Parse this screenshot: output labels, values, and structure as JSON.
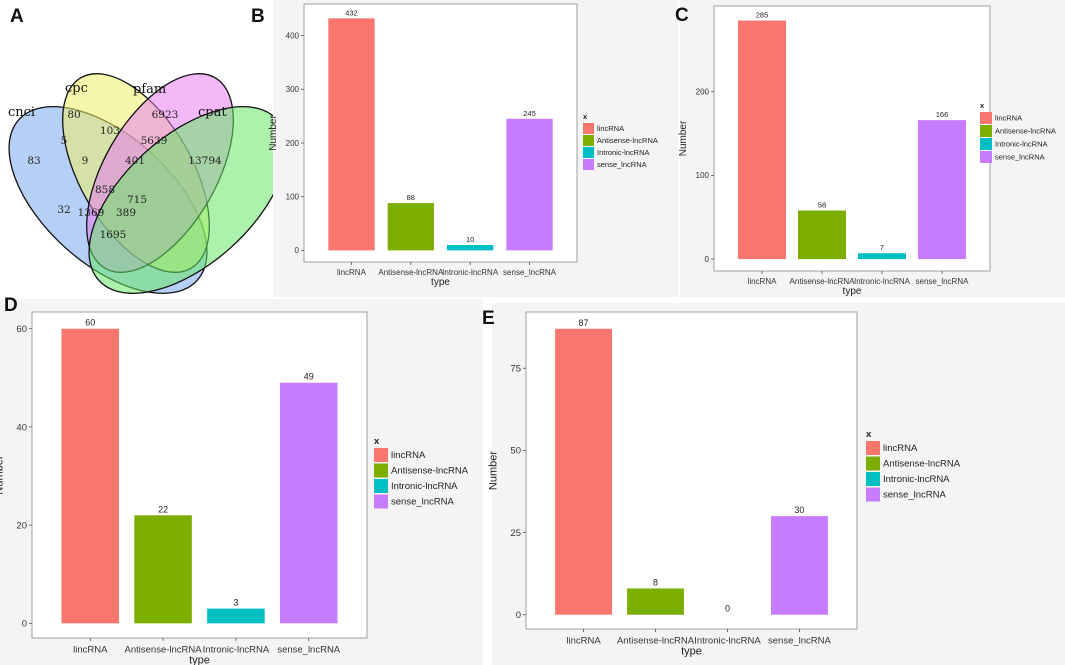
{
  "figure": {
    "venn": {
      "letter": "A",
      "sets": [
        {
          "name": "cnci",
          "color": "#7aa8f0"
        },
        {
          "name": "cpc",
          "color": "#eef06a"
        },
        {
          "name": "pfam",
          "color": "#e87ef0"
        },
        {
          "name": "cpat",
          "color": "#68e868"
        }
      ],
      "regions": [
        "83",
        "80",
        "6923",
        "13794",
        "5",
        "103",
        "5639",
        "9",
        "401",
        "858",
        "32",
        "715",
        "1369",
        "389",
        "1695"
      ]
    }
  },
  "chart_data": [
    {
      "panel": "B",
      "type": "bar",
      "categories": [
        "lincRNA",
        "Antisense-lncRNA",
        "Intronic-lncRNA",
        "sense_lncRNA"
      ],
      "values": [
        432,
        88,
        10,
        245
      ],
      "xlabel": "type",
      "ylabel": "Number",
      "yticks": [
        0,
        100,
        200,
        300,
        400
      ],
      "ylim": [
        0,
        455
      ],
      "legend_title": "x",
      "legend_position": "right"
    },
    {
      "panel": "C",
      "type": "bar",
      "categories": [
        "lincRNA",
        "Antisense-lncRNA",
        "Intronic-lncRNA",
        "sense_lncRNA"
      ],
      "values": [
        285,
        58,
        7,
        166
      ],
      "xlabel": "type",
      "ylabel": "Number",
      "yticks": [
        0,
        100,
        200
      ],
      "ylim": [
        0,
        300
      ],
      "legend_title": "x",
      "legend_position": "right"
    },
    {
      "panel": "D",
      "type": "bar",
      "categories": [
        "lincRNA",
        "Antisense-lncRNA",
        "Intronic-lncRNA",
        "sense_lncRNA"
      ],
      "values": [
        60,
        22,
        3,
        49
      ],
      "xlabel": "type",
      "ylabel": "Number",
      "yticks": [
        0,
        20,
        40,
        60
      ],
      "ylim": [
        0,
        63
      ],
      "legend_title": "x",
      "legend_position": "right"
    },
    {
      "panel": "E",
      "type": "bar",
      "categories": [
        "lincRNA",
        "Antisense-lncRNA",
        "Intronic-lncRNA",
        "sense_lncRNA"
      ],
      "values": [
        87,
        8,
        0,
        30
      ],
      "xlabel": "type",
      "ylabel": "Number",
      "yticks": [
        0,
        25,
        50,
        75
      ],
      "ylim": [
        0,
        91.5
      ],
      "legend_title": "x",
      "legend_position": "right"
    }
  ],
  "bar_colors": [
    "#f8766d",
    "#7cae00",
    "#00bfc4",
    "#c77cff"
  ]
}
